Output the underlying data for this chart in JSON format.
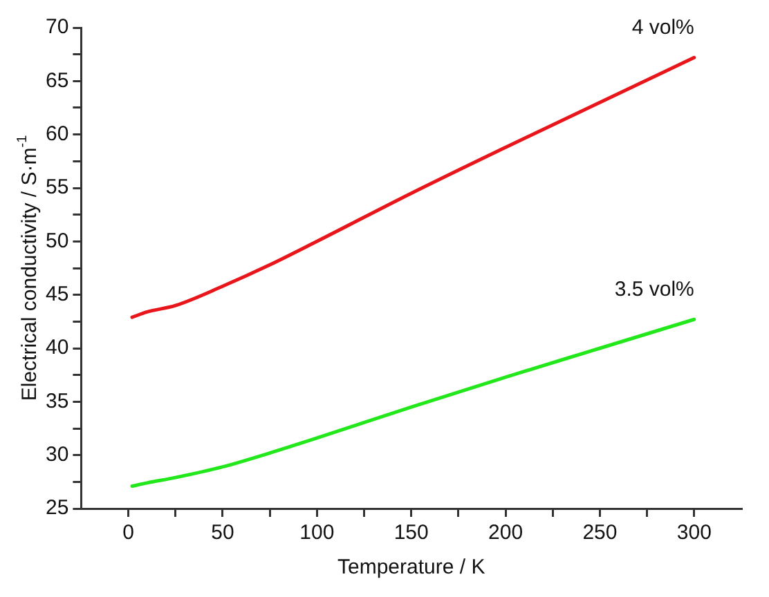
{
  "chart_data": {
    "type": "line",
    "xlabel": "Temperature / K",
    "ylabel": "Electrical conductivity / S·m$^{-1}$",
    "xlim": [
      -25,
      325
    ],
    "xticks": [
      0,
      {
        "value": 25,
        "label": null
      },
      50,
      {
        "value": 75,
        "label": null
      },
      100,
      {
        "value": 125,
        "label": null
      },
      150,
      {
        "value": 175,
        "label": null
      },
      200,
      {
        "value": 225,
        "label": null
      },
      250,
      {
        "value": 275,
        "label": null
      },
      300
    ],
    "ylim": [
      25,
      70
    ],
    "yticks": [
      25,
      {
        "value": 27.5,
        "label": null
      },
      30,
      {
        "value": 32.5,
        "label": null
      },
      35,
      {
        "value": 37.5,
        "label": null
      },
      40,
      {
        "value": 42.5,
        "label": null
      },
      45,
      {
        "value": 47.5,
        "label": null
      },
      50,
      {
        "value": 52.5,
        "label": null
      },
      55,
      {
        "value": 57.5,
        "label": null
      },
      60,
      {
        "value": 62.5,
        "label": null
      },
      65,
      {
        "value": 67.5,
        "label": null
      },
      70
    ],
    "grid": false,
    "legend": false,
    "marker": "none",
    "line_style": "solid",
    "series": [
      {
        "name": "4 vol%",
        "color": "#e8161b",
        "x": [
          2,
          10,
          25,
          50,
          75,
          100,
          150,
          200,
          250,
          300
        ],
        "values": [
          42.9,
          43.4,
          44.0,
          45.8,
          47.8,
          50.0,
          54.5,
          58.8,
          63.0,
          67.2
        ]
      },
      {
        "name": "3.5 vol%",
        "color": "#22e81b",
        "x": [
          2,
          10,
          25,
          50,
          75,
          100,
          150,
          200,
          250,
          300
        ],
        "values": [
          27.1,
          27.4,
          27.9,
          28.9,
          30.2,
          31.6,
          34.5,
          37.3,
          40.0,
          42.7
        ]
      }
    ]
  }
}
